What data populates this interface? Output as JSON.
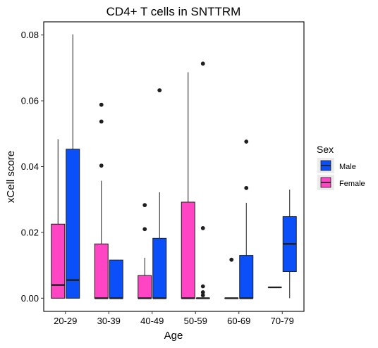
{
  "chart_data": {
    "type": "box",
    "title": "CD4+ T cells in SNTTRM",
    "xlabel": "Age",
    "ylabel": "xCell score",
    "ylim": [
      -0.004,
      0.084
    ],
    "yticks": [
      0.0,
      0.02,
      0.04,
      0.06,
      0.08
    ],
    "ytick_labels": [
      "0.00",
      "0.02",
      "0.04",
      "0.06",
      "0.08"
    ],
    "categories": [
      "20-29",
      "30-39",
      "40-49",
      "50-59",
      "60-69",
      "70-79"
    ],
    "legend": {
      "title": "Sex",
      "position": "right",
      "entries": [
        {
          "label": "Male",
          "color": "#0a4ff7"
        },
        {
          "label": "Female",
          "color": "#ff44c4"
        }
      ]
    },
    "series": [
      {
        "name": "Female",
        "color": "#ff44c4",
        "boxes": [
          {
            "category": "20-29",
            "min": 0.0,
            "q1": 0.0,
            "median": 0.004,
            "q3": 0.0225,
            "max": 0.0483,
            "outliers": []
          },
          {
            "category": "30-39",
            "min": 0.0,
            "q1": 0.0,
            "median": 0.0,
            "q3": 0.0165,
            "max": 0.0357,
            "outliers": [
              0.0403,
              0.0537,
              0.0588
            ]
          },
          {
            "category": "40-49",
            "min": 0.0,
            "q1": 0.0,
            "median": 0.0,
            "q3": 0.0069,
            "max": 0.0123,
            "outliers": [
              0.021,
              0.0283
            ]
          },
          {
            "category": "50-59",
            "min": 0.0,
            "q1": 0.0,
            "median": 0.0,
            "q3": 0.0292,
            "max": 0.0687,
            "outliers": []
          },
          {
            "category": "60-69",
            "min": 0.0,
            "q1": 0.0,
            "median": 0.0,
            "q3": 0.0,
            "max": 0.0,
            "outliers": [
              0.0117
            ]
          },
          {
            "category": "70-79",
            "min": 0.0033,
            "q1": 0.0033,
            "median": 0.0033,
            "q3": 0.0033,
            "max": 0.0033,
            "outliers": []
          }
        ]
      },
      {
        "name": "Male",
        "color": "#0a4ff7",
        "boxes": [
          {
            "category": "20-29",
            "min": 0.0,
            "q1": 0.0,
            "median": 0.0055,
            "q3": 0.0453,
            "max": 0.0802,
            "outliers": []
          },
          {
            "category": "30-39",
            "min": 0.0,
            "q1": 0.0,
            "median": 0.0,
            "q3": 0.0116,
            "max": 0.0116,
            "outliers": []
          },
          {
            "category": "40-49",
            "min": 0.0,
            "q1": 0.0,
            "median": 0.0,
            "q3": 0.0182,
            "max": 0.0322,
            "outliers": [
              0.0632
            ]
          },
          {
            "category": "50-59",
            "min": 0.0,
            "q1": 0.0,
            "median": 0.0,
            "q3": 0.0,
            "max": 0.0,
            "outliers": [
              0.0713,
              0.0213,
              0.0036,
              0.0018,
              0.0009
            ]
          },
          {
            "category": "60-69",
            "min": 0.0,
            "q1": 0.0,
            "median": 0.0,
            "q3": 0.013,
            "max": 0.029,
            "outliers": [
              0.0335,
              0.0476
            ]
          },
          {
            "category": "70-79",
            "min": 0.0,
            "q1": 0.0081,
            "median": 0.0165,
            "q3": 0.0248,
            "max": 0.033,
            "outliers": []
          }
        ]
      }
    ]
  }
}
